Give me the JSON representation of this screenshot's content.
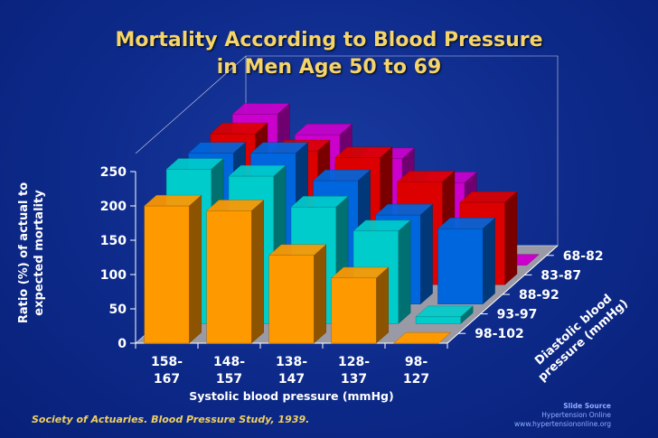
{
  "title": {
    "line1": "Mortality According to Blood Pressure",
    "line2": "in Men Age 50 to 69"
  },
  "source": "Society of Actuaries. Blood Pressure Study, 1939.",
  "credit": {
    "line1": "Slide Source",
    "line2": "Hypertension Online",
    "line3": "www.hypertensiononline.org"
  },
  "chart_data": {
    "type": "bar",
    "style": "3d-grouped",
    "title": "Mortality According to Blood Pressure in Men Age 50 to 69",
    "ylabel_line1": "Ratio (%) of actual to",
    "ylabel_line2": "expected mortality",
    "xlabel": "Systolic blood pressure (mmHg)",
    "zlabel_line1": "Diastolic blood",
    "zlabel_line2": "pressure (mmHg)",
    "ylim": [
      0,
      250
    ],
    "yticks": [
      "0",
      "50",
      "100",
      "150",
      "200",
      "250"
    ],
    "categories": [
      {
        "line1": "158-",
        "line2": "167"
      },
      {
        "line1": "148-",
        "line2": "157"
      },
      {
        "line1": "138-",
        "line2": "147"
      },
      {
        "line1": "128-",
        "line2": "137"
      },
      {
        "line1": "98-",
        "line2": "127"
      }
    ],
    "series": [
      {
        "name": "98-102",
        "color": "#ff9900",
        "values": [
          200,
          193,
          128,
          95,
          0
        ]
      },
      {
        "name": "93-97",
        "color": "#00cccc",
        "values": [
          225,
          215,
          170,
          135,
          10
        ]
      },
      {
        "name": "88-92",
        "color": "#0066dd",
        "values": [
          220,
          220,
          180,
          130,
          110
        ]
      },
      {
        "name": "83-87",
        "color": "#dd0000",
        "values": [
          220,
          195,
          185,
          150,
          120
        ]
      },
      {
        "name": "68-82",
        "color": "#cc00cc",
        "values": [
          220,
          190,
          155,
          120,
          0
        ]
      }
    ]
  }
}
